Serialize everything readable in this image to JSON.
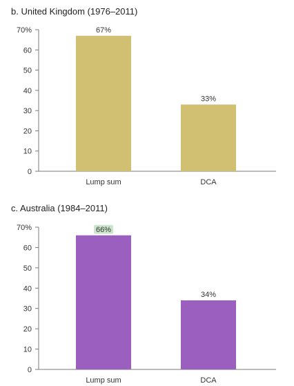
{
  "chart_data": [
    {
      "type": "bar",
      "title": "b. United Kingdom (1976–2011)",
      "categories": [
        "Lump sum",
        "DCA"
      ],
      "values": [
        67,
        33
      ],
      "data_labels": [
        "67%",
        "33%"
      ],
      "ylim": [
        0,
        70
      ],
      "yticks": [
        0,
        10,
        20,
        30,
        40,
        50,
        60,
        70
      ],
      "ytick_labels": [
        "0",
        "10",
        "20",
        "30",
        "40",
        "50",
        "60",
        "70%"
      ],
      "bar_color": "#d1bf72",
      "grid": false
    },
    {
      "type": "bar",
      "title": "c. Australia (1984–2011)",
      "categories": [
        "Lump sum",
        "DCA"
      ],
      "values": [
        66,
        34
      ],
      "data_labels": [
        "66%",
        "34%"
      ],
      "highlighted_label_index": 0,
      "highlight_color": "#cde5cd",
      "ylim": [
        0,
        70
      ],
      "yticks": [
        0,
        10,
        20,
        30,
        40,
        50,
        60,
        70
      ],
      "ytick_labels": [
        "0",
        "10",
        "20",
        "30",
        "40",
        "50",
        "60",
        "70%"
      ],
      "bar_color": "#9b5fc0",
      "grid": false
    }
  ]
}
